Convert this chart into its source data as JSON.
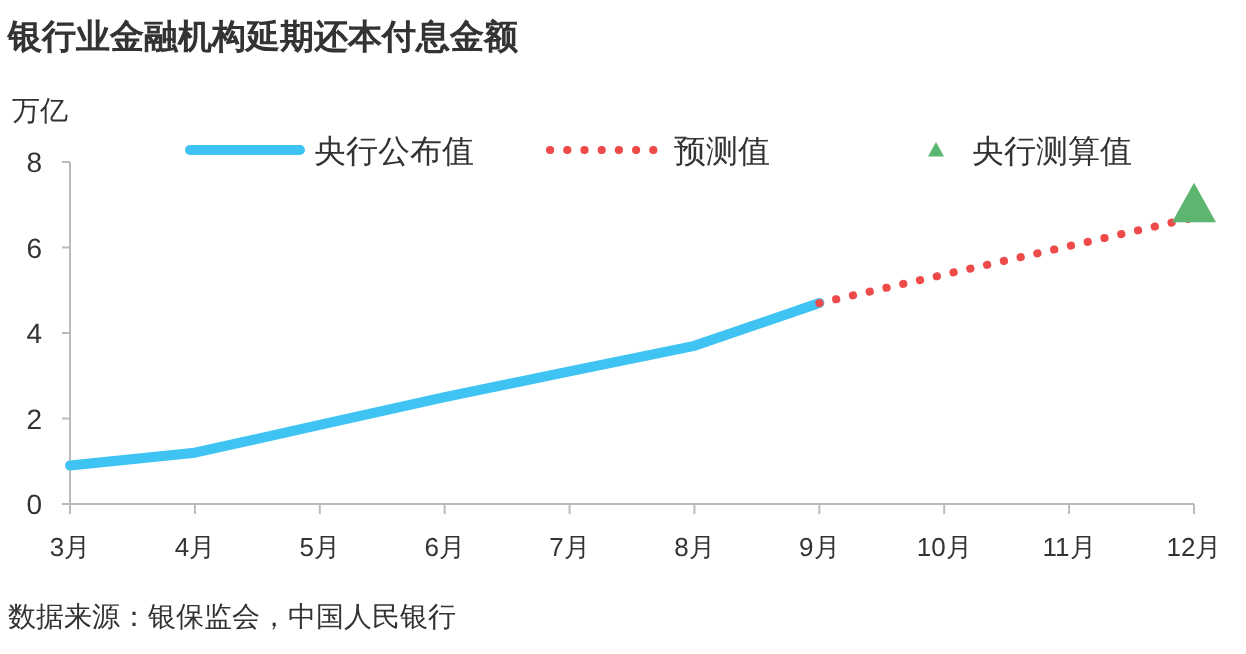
{
  "chart_data": {
    "type": "line",
    "title": "银行业金融机构延期还本付息金额",
    "ylabel": "万亿",
    "categories": [
      "3月",
      "4月",
      "5月",
      "6月",
      "7月",
      "8月",
      "9月",
      "10月",
      "11月",
      "12月"
    ],
    "series": [
      {
        "name": "央行公布值",
        "type": "line",
        "line_style": "solid",
        "color": "#3ec3f2",
        "values": [
          0.9,
          1.2,
          1.85,
          2.5,
          3.1,
          3.7,
          4.7,
          null,
          null,
          null
        ]
      },
      {
        "name": "预测值",
        "type": "line",
        "line_style": "dotted",
        "color": "#ee4a4a",
        "values": [
          null,
          null,
          null,
          null,
          null,
          null,
          4.7,
          null,
          null,
          6.7
        ]
      },
      {
        "name": "央行测算值",
        "type": "scatter",
        "marker": "triangle",
        "color": "#5cb66f",
        "values": [
          null,
          null,
          null,
          null,
          null,
          null,
          null,
          null,
          null,
          7.0
        ]
      }
    ],
    "ylim": [
      0,
      8
    ],
    "yticks": [
      0,
      2,
      4,
      6,
      8
    ],
    "grid": false,
    "legend": "top",
    "annotations": [
      "数据来源：银保监会，中国人民银行"
    ]
  }
}
